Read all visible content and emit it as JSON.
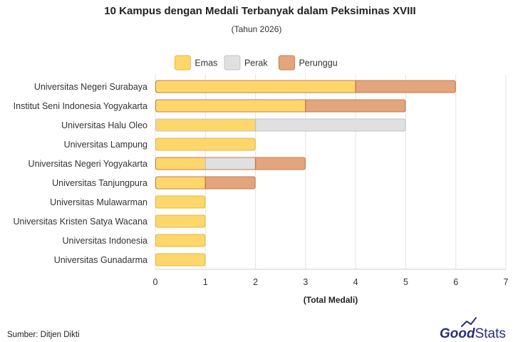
{
  "chart_data": {
    "type": "bar",
    "orientation": "horizontal",
    "stacked": true,
    "title": "10 Kampus dengan Medali Terbanyak dalam Peksiminas XVIII",
    "subtitle": "(Tahun 2026)",
    "xlabel": "(Total Medali)",
    "ylabel": "",
    "xlim": [
      0,
      7
    ],
    "xticks": [
      0,
      1,
      2,
      3,
      4,
      5,
      6,
      7
    ],
    "grid": true,
    "legend_position": "top-center",
    "categories": [
      "Universitas Negeri Surabaya",
      "Institut Seni Indonesia Yogyakarta",
      "Universitas Halu Oleo",
      "Universitas Lampung",
      "Universitas Negeri Yogyakarta",
      "Universitas Tanjungpura",
      "Universitas Mulawarman",
      "Universitas Kristen Satya Wacana",
      "Universitas Indonesia",
      "Universitas Gunadarma"
    ],
    "series": [
      {
        "name": "Emas",
        "color": "#fdd76b",
        "stroke": "#e8b93a",
        "values": [
          4,
          3,
          2,
          2,
          1,
          1,
          1,
          1,
          1,
          1
        ]
      },
      {
        "name": "Perak",
        "color": "#e0e0e0",
        "stroke": "#c4c4c4",
        "values": [
          0,
          0,
          3,
          0,
          1,
          0,
          0,
          0,
          0,
          0
        ]
      },
      {
        "name": "Perunggu",
        "color": "#e3a57c",
        "stroke": "#c77c4b",
        "values": [
          2,
          2,
          0,
          0,
          1,
          1,
          0,
          0,
          0,
          0
        ]
      }
    ]
  },
  "footer": {
    "source": "Sumber: Ditjen Dikti",
    "logo_good": "Good",
    "logo_stats": "Stats"
  }
}
